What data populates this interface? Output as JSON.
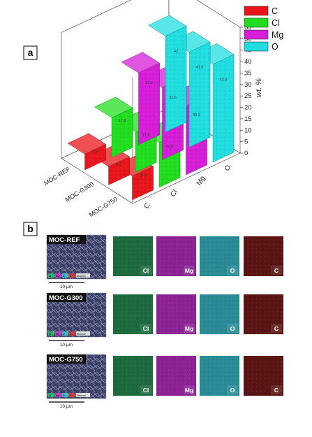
{
  "panels": {
    "a": {
      "label": "a"
    },
    "b": {
      "label": "b"
    }
  },
  "colors": {
    "C": "#e8161b",
    "Cl": "#22dd1f",
    "Mg": "#d61ed8",
    "O": "#20dde0"
  },
  "chart_data": {
    "type": "bar",
    "subtype": "3d-bar",
    "title": "",
    "zlabel": "wt. %",
    "zlim": [
      0,
      55
    ],
    "zticks": [
      0,
      5,
      10,
      15,
      20,
      25,
      30,
      35,
      40,
      45,
      50,
      55
    ],
    "elements": [
      "C",
      "Cl",
      "Mg",
      "O"
    ],
    "samples": [
      "MOC-G750",
      "MOC-G300",
      "MOC-REF"
    ],
    "legend": {
      "placement": "top-right",
      "entries": [
        "C",
        "Cl",
        "Mg",
        "O"
      ]
    },
    "series": [
      {
        "name": "MOC-G750",
        "values": [
          10.4,
          19.6,
          30.2,
          42.8
        ],
        "labels": [
          "10.4",
          "19.6",
          "30.2",
          "42.8"
        ]
      },
      {
        "name": "MOC-G300",
        "values": [
          8.0,
          17.6,
          31.6,
          41.6
        ],
        "labels": [
          "8.0",
          "17.6",
          "31.6",
          "41.6"
        ]
      },
      {
        "name": "MOC-REF",
        "values": [
          6.9,
          17.3,
          31.4,
          42.0
        ],
        "labels": [
          "6.9",
          "17.3",
          "31.4",
          "42"
        ]
      }
    ]
  },
  "eds_maps": {
    "rows": [
      {
        "sample": "MOC-REF",
        "scale": "10 µm",
        "mini_legend": [
          "Cl",
          "Mg",
          "O",
          "C",
          "Electron"
        ],
        "maps": [
          {
            "element": "Cl",
            "label": "Cl",
            "color": "#1c6a3e"
          },
          {
            "element": "Mg",
            "label": "Mg",
            "color": "#8c2394"
          },
          {
            "element": "O",
            "label": "O",
            "color": "#2a8a95"
          },
          {
            "element": "C",
            "label": "C",
            "color": "#5a1414"
          }
        ]
      },
      {
        "sample": "MOC-G300",
        "scale": "10 µm",
        "mini_legend": [
          "Cl",
          "Mg",
          "O",
          "C",
          "Electron"
        ],
        "maps": [
          {
            "element": "Cl",
            "label": "Cl",
            "color": "#1c6a3e"
          },
          {
            "element": "Mg",
            "label": "Mg",
            "color": "#8c2394"
          },
          {
            "element": "O",
            "label": "O",
            "color": "#2a8a95"
          },
          {
            "element": "C",
            "label": "C",
            "color": "#5a1414"
          }
        ]
      },
      {
        "sample": "MOC-G750",
        "scale": "10 µm",
        "mini_legend": [
          "Cl",
          "Mg",
          "O",
          "C",
          "Electron"
        ],
        "maps": [
          {
            "element": "Cl",
            "label": "Cl",
            "color": "#1c6a3e"
          },
          {
            "element": "Mg",
            "label": "Mg",
            "color": "#8c2394"
          },
          {
            "element": "O",
            "label": "O",
            "color": "#2a8a95"
          },
          {
            "element": "C",
            "label": "C",
            "color": "#5a1414"
          }
        ]
      }
    ]
  }
}
